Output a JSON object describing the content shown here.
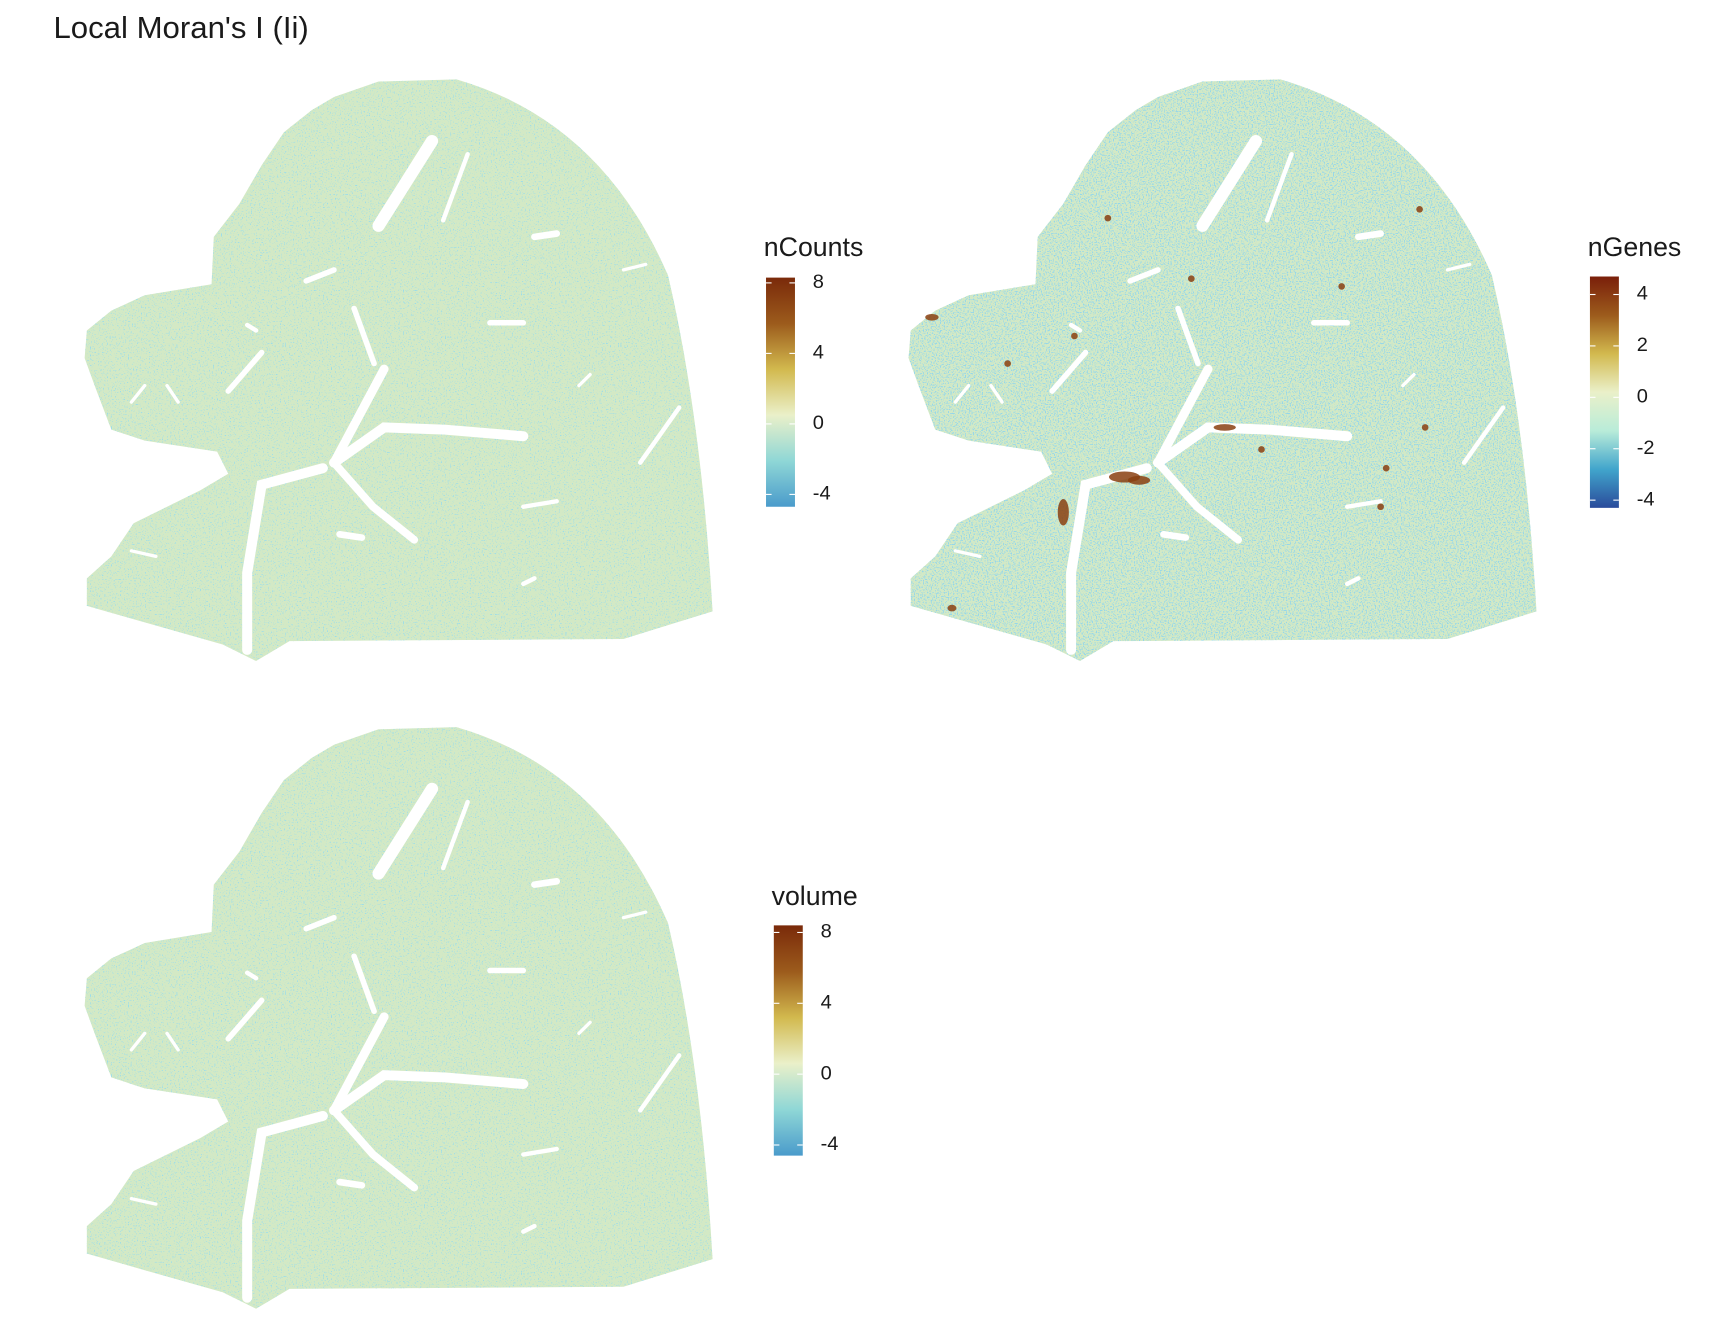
{
  "title": "Local Moran's I (Ii)",
  "panels": [
    {
      "legend_title": "nCounts",
      "lim": [
        -4.7,
        8.3
      ],
      "ticks": [
        8,
        4,
        0,
        -4
      ],
      "colors": [
        "#4a9bcb",
        "#8fd7d6",
        "#eaf0c9",
        "#d2b94e",
        "#9c5b1c",
        "#7a2a0a"
      ]
    },
    {
      "legend_title": "nGenes",
      "lim": [
        -4.3,
        4.7
      ],
      "ticks": [
        4,
        2,
        0,
        -2,
        -4
      ],
      "colors": [
        "#2a4b9b",
        "#41a5cc",
        "#b9ecd9",
        "#eaf0c9",
        "#d2b94e",
        "#9c5b1c",
        "#7a1f0a"
      ]
    },
    {
      "legend_title": "volume",
      "lim": [
        -4.6,
        8.4
      ],
      "ticks": [
        8,
        4,
        0,
        -4
      ],
      "colors": [
        "#4a9bcb",
        "#8fd7d6",
        "#eaf0c9",
        "#d2b94e",
        "#9c5b1c",
        "#7a2a0a"
      ]
    }
  ]
}
